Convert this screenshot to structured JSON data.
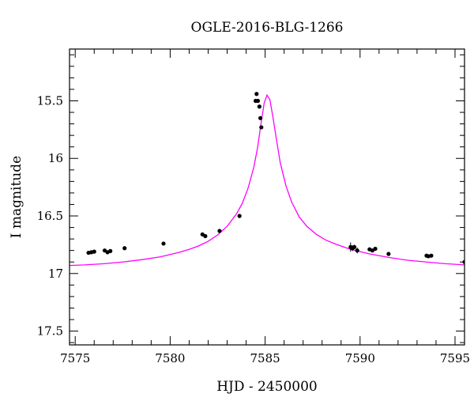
{
  "chart_data": {
    "type": "scatter",
    "title": "OGLE-2016-BLG-1266",
    "xlabel": "HJD - 2450000",
    "ylabel": "I magnitude",
    "xlim": [
      7574.7,
      7595.5
    ],
    "ylim": [
      17.62,
      15.05
    ],
    "y_inverted": true,
    "x_ticks": [
      7575,
      7580,
      7585,
      7590,
      7595
    ],
    "x_tick_labels": [
      "7575",
      "7580",
      "7585",
      "7590",
      "7595"
    ],
    "y_ticks": [
      15.5,
      16,
      16.5,
      17,
      17.5
    ],
    "y_tick_labels": [
      "15.5",
      "16",
      "16.5",
      "17",
      "17.5"
    ],
    "x_minor_step": 1,
    "y_minor_step": 0.1,
    "grid": false,
    "colors": {
      "model": "#ff00ff",
      "data": "#000000"
    },
    "model": {
      "name": "",
      "peak_time": 7585.1,
      "baseline_mag": 16.96,
      "peak_mag": 15.45,
      "curve": [
        [
          7574.7,
          16.93
        ],
        [
          7575.5,
          16.925
        ],
        [
          7576.5,
          16.915
        ],
        [
          7577.5,
          16.9
        ],
        [
          7578.5,
          16.88
        ],
        [
          7579.5,
          16.855
        ],
        [
          7580.5,
          16.815
        ],
        [
          7581.0,
          16.79
        ],
        [
          7581.5,
          16.76
        ],
        [
          7582.0,
          16.72
        ],
        [
          7582.5,
          16.665
        ],
        [
          7583.0,
          16.59
        ],
        [
          7583.5,
          16.48
        ],
        [
          7583.8,
          16.39
        ],
        [
          7584.1,
          16.26
        ],
        [
          7584.4,
          16.08
        ],
        [
          7584.6,
          15.91
        ],
        [
          7584.8,
          15.68
        ],
        [
          7584.95,
          15.52
        ],
        [
          7585.1,
          15.45
        ],
        [
          7585.25,
          15.49
        ],
        [
          7585.4,
          15.63
        ],
        [
          7585.6,
          15.84
        ],
        [
          7585.8,
          16.04
        ],
        [
          7586.1,
          16.24
        ],
        [
          7586.4,
          16.38
        ],
        [
          7586.8,
          16.51
        ],
        [
          7587.2,
          16.59
        ],
        [
          7587.7,
          16.66
        ],
        [
          7588.2,
          16.71
        ],
        [
          7588.8,
          16.75
        ],
        [
          7589.5,
          16.79
        ],
        [
          7590.5,
          16.83
        ],
        [
          7591.5,
          16.86
        ],
        [
          7592.5,
          16.885
        ],
        [
          7593.5,
          16.9
        ],
        [
          7594.5,
          16.915
        ],
        [
          7595.5,
          16.925
        ]
      ]
    },
    "series": [
      {
        "name": "",
        "points": [
          {
            "x": 7575.7,
            "y": 16.82,
            "err": 0.01
          },
          {
            "x": 7575.85,
            "y": 16.815,
            "err": 0.01
          },
          {
            "x": 7576.0,
            "y": 16.81,
            "err": 0.01
          },
          {
            "x": 7576.55,
            "y": 16.8,
            "err": 0.012
          },
          {
            "x": 7576.7,
            "y": 16.815,
            "err": 0.012
          },
          {
            "x": 7576.85,
            "y": 16.805,
            "err": 0.012
          },
          {
            "x": 7577.6,
            "y": 16.78,
            "err": 0.01
          },
          {
            "x": 7579.65,
            "y": 16.74,
            "err": 0.012
          },
          {
            "x": 7581.7,
            "y": 16.66,
            "err": 0.01
          },
          {
            "x": 7581.85,
            "y": 16.675,
            "err": 0.01
          },
          {
            "x": 7582.6,
            "y": 16.63,
            "err": 0.01
          },
          {
            "x": 7583.65,
            "y": 16.5,
            "err": 0.015
          },
          {
            "x": 7584.5,
            "y": 15.5,
            "err": 0.01
          },
          {
            "x": 7584.55,
            "y": 15.44,
            "err": 0.01
          },
          {
            "x": 7584.62,
            "y": 15.5,
            "err": 0.01
          },
          {
            "x": 7584.7,
            "y": 15.55,
            "err": 0.01
          },
          {
            "x": 7584.75,
            "y": 15.65,
            "err": 0.01
          },
          {
            "x": 7584.8,
            "y": 15.73,
            "err": 0.01
          },
          {
            "x": 7589.5,
            "y": 16.77,
            "err": 0.04
          },
          {
            "x": 7589.6,
            "y": 16.78,
            "err": 0.025
          },
          {
            "x": 7589.7,
            "y": 16.77,
            "err": 0.02
          },
          {
            "x": 7589.85,
            "y": 16.8,
            "err": 0.025
          },
          {
            "x": 7590.5,
            "y": 16.79,
            "err": 0.01
          },
          {
            "x": 7590.65,
            "y": 16.8,
            "err": 0.01
          },
          {
            "x": 7590.8,
            "y": 16.785,
            "err": 0.01
          },
          {
            "x": 7591.5,
            "y": 16.83,
            "err": 0.01
          },
          {
            "x": 7593.5,
            "y": 16.845,
            "err": 0.01
          },
          {
            "x": 7593.6,
            "y": 16.85,
            "err": 0.01
          },
          {
            "x": 7593.75,
            "y": 16.845,
            "err": 0.01
          },
          {
            "x": 7595.5,
            "y": 16.9,
            "err": 0.01
          }
        ]
      }
    ]
  }
}
